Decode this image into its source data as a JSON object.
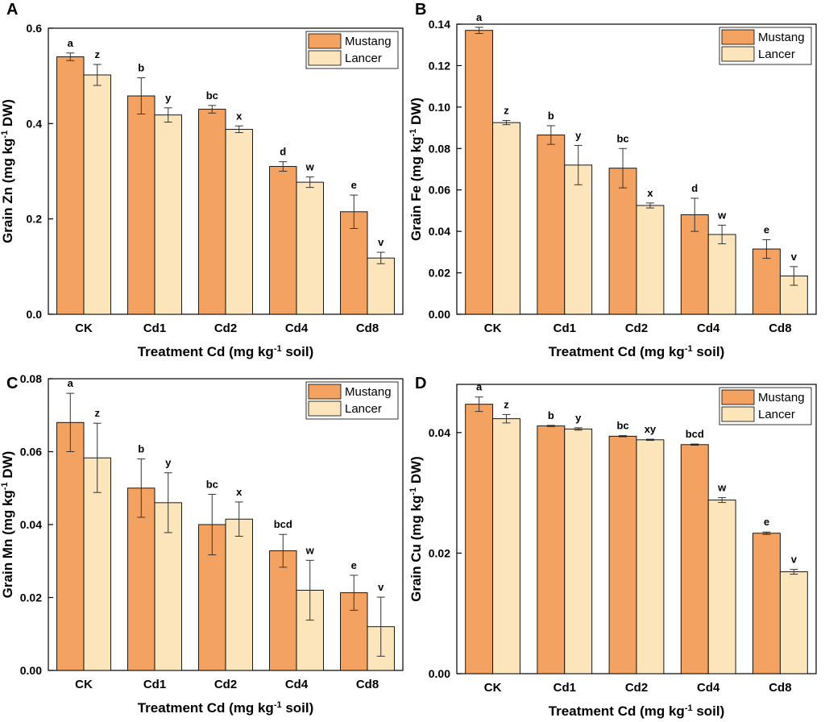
{
  "legend": {
    "series": [
      "Mustang",
      "Lancer"
    ]
  },
  "colors": {
    "mustang": "#f4a261",
    "lancer": "#fde5bb",
    "mustang_edge": "#000000",
    "lancer_edge": "#000000"
  },
  "chart_data": [
    {
      "panel": "A",
      "type": "bar",
      "title": "",
      "xlabel": "Treatment Cd (mg kg-1 soil)",
      "ylabel": "Grain Zn (mg kg-1 DW)",
      "xlabel_parts": [
        "Treatment Cd (mg kg",
        "-1",
        " soil)"
      ],
      "ylabel_parts": [
        "Grain Zn (mg kg",
        "-1",
        " DW)"
      ],
      "categories": [
        "CK",
        "Cd1",
        "Cd2",
        "Cd4",
        "Cd8"
      ],
      "ylim": [
        0,
        0.6
      ],
      "yticks": [
        0.0,
        0.2,
        0.4,
        0.6
      ],
      "ytick_labels": [
        "0.0",
        "0.2",
        "0.4",
        "0.6"
      ],
      "legend_position": "top-right",
      "series": [
        {
          "name": "Mustang",
          "values": [
            0.54,
            0.458,
            0.43,
            0.31,
            0.215
          ],
          "errors": [
            0.008,
            0.038,
            0.008,
            0.01,
            0.035
          ],
          "labels": [
            "a",
            "b",
            "bc",
            "d",
            "e"
          ]
        },
        {
          "name": "Lancer",
          "values": [
            0.502,
            0.418,
            0.388,
            0.277,
            0.118
          ],
          "errors": [
            0.022,
            0.015,
            0.007,
            0.011,
            0.012
          ],
          "labels": [
            "z",
            "y",
            "x",
            "w",
            "v"
          ]
        }
      ]
    },
    {
      "panel": "B",
      "type": "bar",
      "title": "",
      "xlabel": "Treatment Cd (mg kg-1 soil)",
      "ylabel": "Grain Fe (mg kg-1 DW)",
      "xlabel_parts": [
        "Treatment Cd (mg kg",
        "-1",
        " soil)"
      ],
      "ylabel_parts": [
        "Grain Fe (mg kg",
        "-1",
        " DW)"
      ],
      "categories": [
        "CK",
        "Cd1",
        "Cd2",
        "Cd4",
        "Cd8"
      ],
      "ylim": [
        0,
        0.14
      ],
      "yticks": [
        0.0,
        0.02,
        0.04,
        0.06,
        0.08,
        0.1,
        0.12,
        0.14
      ],
      "ytick_labels": [
        "0.00",
        "0.02",
        "0.04",
        "0.06",
        "0.08",
        "0.10",
        "0.12",
        "0.14"
      ],
      "legend_position": "top-right",
      "series": [
        {
          "name": "Mustang",
          "values": [
            0.137,
            0.0865,
            0.0705,
            0.048,
            0.0315
          ],
          "errors": [
            0.0015,
            0.0045,
            0.0095,
            0.008,
            0.0045
          ],
          "labels": [
            "a",
            "b",
            "bc",
            "d",
            "e"
          ]
        },
        {
          "name": "Lancer",
          "values": [
            0.0925,
            0.072,
            0.0525,
            0.0385,
            0.0185
          ],
          "errors": [
            0.001,
            0.0095,
            0.0012,
            0.0045,
            0.0045
          ],
          "labels": [
            "z",
            "y",
            "x",
            "w",
            "v"
          ]
        }
      ]
    },
    {
      "panel": "C",
      "type": "bar",
      "title": "",
      "xlabel": "Treatment Cd (mg kg-1 soil)",
      "ylabel": "Grain Mn (mg kg-1 DW)",
      "xlabel_parts": [
        "Treatment Cd (mg kg",
        "-1",
        " soil)"
      ],
      "ylabel_parts": [
        "Grain Mn (mg kg",
        "-1",
        " DW)"
      ],
      "categories": [
        "CK",
        "Cd1",
        "Cd2",
        "Cd4",
        "Cd8"
      ],
      "ylim": [
        0,
        0.08
      ],
      "yticks": [
        0.0,
        0.02,
        0.04,
        0.06,
        0.08
      ],
      "ytick_labels": [
        "0.00",
        "0.02",
        "0.04",
        "0.06",
        "0.08"
      ],
      "legend_position": "top-right",
      "series": [
        {
          "name": "Mustang",
          "values": [
            0.068,
            0.05,
            0.04,
            0.0328,
            0.0213
          ],
          "errors": [
            0.008,
            0.008,
            0.0083,
            0.0045,
            0.0048
          ],
          "labels": [
            "a",
            "b",
            "bc",
            "bcd",
            "e"
          ]
        },
        {
          "name": "Lancer",
          "values": [
            0.0583,
            0.046,
            0.0415,
            0.022,
            0.012
          ],
          "errors": [
            0.0095,
            0.0082,
            0.0047,
            0.0082,
            0.0081
          ],
          "labels": [
            "z",
            "y",
            "x",
            "w",
            "v"
          ]
        }
      ]
    },
    {
      "panel": "D",
      "type": "bar",
      "title": "",
      "xlabel": "Treatment Cd (mg kg-1 soil)",
      "ylabel": "Grain Cu (mg kg-1 DW)",
      "xlabel_parts": [
        "Treatment Cd (mg kg",
        "-1",
        " soil)"
      ],
      "ylabel_parts": [
        "Grain Cu (mg kg",
        "-1",
        " DW)"
      ],
      "categories": [
        "CK",
        "Cd1",
        "Cd2",
        "Cd4",
        "Cd8"
      ],
      "ylim": [
        0,
        0.048
      ],
      "yticks": [
        0.0,
        0.02,
        0.04
      ],
      "ytick_labels": [
        "0.00",
        "0.02",
        "0.04"
      ],
      "legend_position": "top-right",
      "series": [
        {
          "name": "Mustang",
          "values": [
            0.0447,
            0.0411,
            0.0394,
            0.038,
            0.0233
          ],
          "errors": [
            0.0012,
            0.0001,
            0.0001,
            0.0001,
            0.0002
          ],
          "labels": [
            "a",
            "b",
            "bc",
            "bcd",
            "e"
          ]
        },
        {
          "name": "Lancer",
          "values": [
            0.0423,
            0.0406,
            0.0388,
            0.0288,
            0.0169
          ],
          "errors": [
            0.0007,
            0.0002,
            0.0001,
            0.0004,
            0.0004
          ],
          "labels": [
            "z",
            "y",
            "xy",
            "w",
            "v"
          ]
        }
      ]
    }
  ]
}
